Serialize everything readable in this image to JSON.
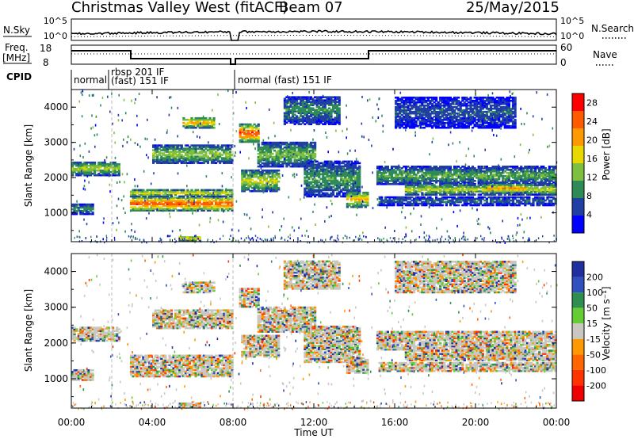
{
  "header": {
    "station": "Christmas Valley West (fitACF)",
    "beam": "Beam 07",
    "date": "25/May/2015"
  },
  "top_panels": {
    "nsky_label": "N.Sky",
    "nsearch_label": "N.Search",
    "noise_ticks": [
      "10^5",
      "10^0"
    ],
    "freq_label": "Freq.",
    "freq_unit": "[MHz]",
    "freq_ticks": [
      "18",
      "8"
    ],
    "nave_label": "Nave",
    "nave_ticks": [
      "60",
      "0"
    ],
    "cpid_label": "CPID",
    "cpid_segments": [
      {
        "line1": "normal",
        "line2": ""
      },
      {
        "line1": "rbsp 201 IF",
        "line2": "(fast) 151 IF"
      },
      {
        "line1": "normal (fast) 151 IF",
        "line2": ""
      }
    ]
  },
  "chart_data": [
    {
      "type": "heatmap",
      "quantity": "power",
      "xlabel": "",
      "ylabel": "Slant Range [km]",
      "x_ticks": [
        "00:00",
        "04:00",
        "08:00",
        "12:00",
        "16:00",
        "20:00",
        "00:00"
      ],
      "xlim_hours": [
        0,
        24
      ],
      "ylim_km": [
        180,
        4500
      ],
      "y_ticks": [
        1000,
        2000,
        3000,
        4000
      ],
      "colorbar": {
        "label": "Power [dB]",
        "ticks": [
          "4",
          "8",
          "12",
          "16",
          "20",
          "24",
          "28"
        ],
        "range": [
          0,
          30
        ],
        "colors": [
          "#0000ff",
          "#1f3fa5",
          "#2e8b57",
          "#7fbf3f",
          "#e8d800",
          "#ff9900",
          "#ff5a00",
          "#ff0000"
        ]
      }
    },
    {
      "type": "heatmap",
      "quantity": "velocity",
      "xlabel": "Time UT",
      "ylabel": "Slant Range [km]",
      "x_ticks": [
        "00:00",
        "04:00",
        "08:00",
        "12:00",
        "16:00",
        "20:00",
        "00:00"
      ],
      "xlim_hours": [
        0,
        24
      ],
      "ylim_km": [
        180,
        4500
      ],
      "y_ticks": [
        1000,
        2000,
        3000,
        4000
      ],
      "colorbar": {
        "label": "Velocity [m s⁻¹]",
        "ticks": [
          "200",
          "100",
          "50",
          "15",
          "-15",
          "-50",
          "-100",
          "-200"
        ],
        "colors": [
          "#1f2fa0",
          "#3050c0",
          "#2f8f4f",
          "#66cc33",
          "#c8c8c0",
          "#ff9900",
          "#ff6600",
          "#ff3300",
          "#ee0000"
        ]
      }
    }
  ]
}
